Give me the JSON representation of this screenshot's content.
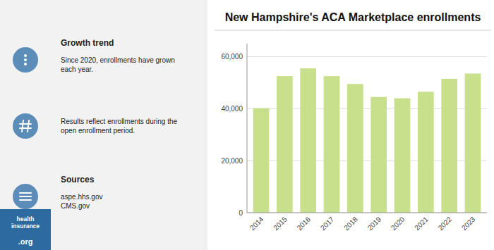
{
  "chart_data": {
    "type": "bar",
    "title": "New Hampshire's ACA Marketplace enrollments",
    "categories": [
      "2014",
      "2015",
      "2016",
      "2017",
      "2018",
      "2019",
      "2020",
      "2021",
      "2022",
      "2023"
    ],
    "values": [
      40200,
      52500,
      55500,
      52500,
      49500,
      44500,
      44000,
      46500,
      51500,
      53500
    ],
    "color": "#c8e08c",
    "ylim": [
      0,
      65000
    ],
    "yticks": [
      0,
      {
        "value": 20000,
        "label": "20,000"
      },
      {
        "value": 40000,
        "label": "40,000"
      },
      {
        "value": 60000,
        "label": "60,000"
      }
    ],
    "grid": true,
    "annotations": [
      {
        "header": "Growth trend",
        "text": "Since 2020, enrollments have grown\neach year."
      },
      {
        "text": "Results reflect enrollments during the\nopen enrollment period."
      },
      {
        "header": "Sources",
        "text": "aspe.hhs.gov\nCMS.gov"
      },
      {
        "text": "health\ninsurance"
      },
      {
        "text": ".org"
      }
    ]
  }
}
